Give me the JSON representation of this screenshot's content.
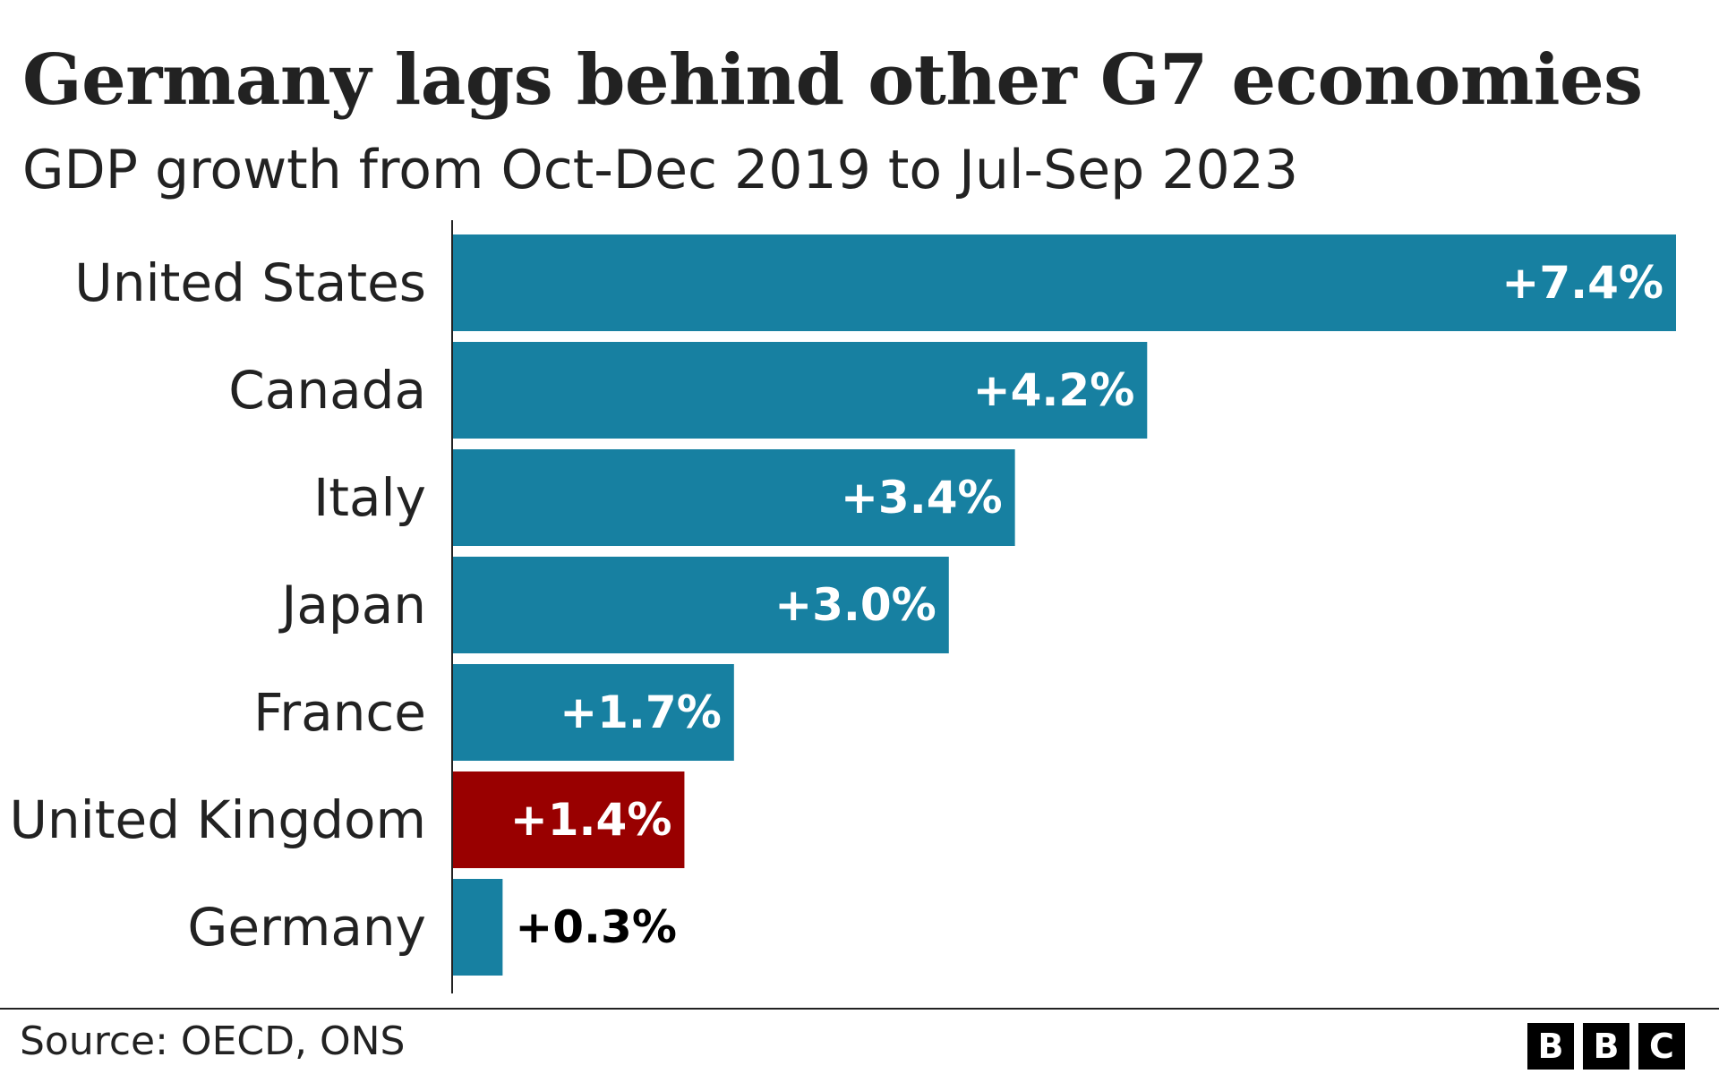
{
  "header": {
    "title": "Germany lags behind other G7 economies",
    "subtitle": "GDP growth from Oct-Dec 2019 to Jul-Sep 2023"
  },
  "chart_data": {
    "type": "bar",
    "orientation": "horizontal",
    "title": "Germany lags behind other G7 economies",
    "subtitle": "GDP growth from Oct-Dec 2019 to Jul-Sep 2023",
    "categories": [
      "United States",
      "Canada",
      "Italy",
      "Japan",
      "France",
      "United Kingdom",
      "Germany"
    ],
    "values": [
      7.4,
      4.2,
      3.4,
      3.0,
      1.7,
      1.4,
      0.3
    ],
    "value_labels": [
      "+7.4%",
      "+4.2%",
      "+3.4%",
      "+3.0%",
      "+1.7%",
      "+1.4%",
      "+0.3%"
    ],
    "highlight_category": "United Kingdom",
    "xlim": [
      0,
      7.4
    ],
    "grid": false,
    "legend": "none"
  },
  "colors": {
    "bar": "#1780a1",
    "highlight": "#990000",
    "label_inside": "#ffffff",
    "label_outside": "#000000",
    "axis": "#222222"
  },
  "footer": {
    "source": "Source: OECD, ONS",
    "logo_letters": [
      "B",
      "B",
      "C"
    ]
  }
}
